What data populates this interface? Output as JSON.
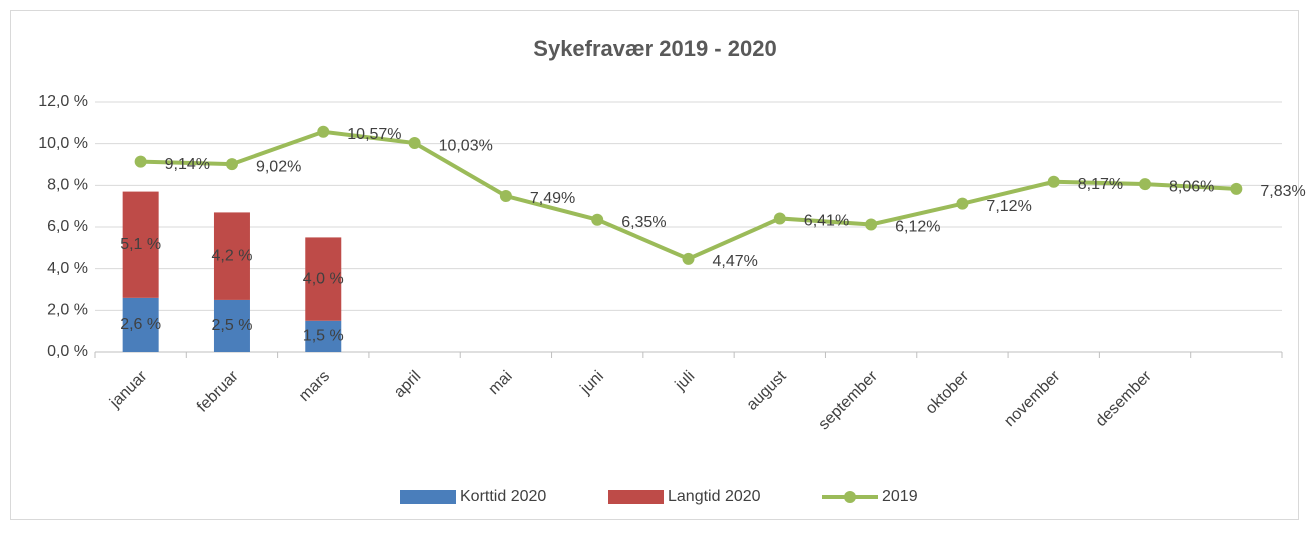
{
  "chart_data": {
    "type": "bar",
    "title": "Sykefravær 2019 - 2020",
    "categories": [
      "januar",
      "februar",
      "mars",
      "april",
      "mai",
      "juni",
      "juli",
      "august",
      "september",
      "oktober",
      "november",
      "desember",
      null
    ],
    "series": [
      {
        "name": "Korttid 2020",
        "color": "#4a7ebb",
        "values": [
          2.6,
          2.5,
          1.5,
          null,
          null,
          null,
          null,
          null,
          null,
          null,
          null,
          null,
          null
        ],
        "value_labels": [
          "2,6 %",
          "2,5 %",
          "1,5 %",
          null,
          null,
          null,
          null,
          null,
          null,
          null,
          null,
          null,
          null
        ]
      },
      {
        "name": "Langtid 2020",
        "color": "#be4b48",
        "values": [
          5.1,
          4.2,
          4.0,
          null,
          null,
          null,
          null,
          null,
          null,
          null,
          null,
          null,
          null
        ],
        "value_labels": [
          "5,1 %",
          "4,2 %",
          "4,0 %",
          null,
          null,
          null,
          null,
          null,
          null,
          null,
          null,
          null,
          null
        ]
      },
      {
        "name": "2019",
        "type": "line",
        "color": "#9bbb59",
        "values": [
          9.14,
          9.02,
          10.57,
          10.03,
          7.49,
          6.35,
          4.47,
          6.41,
          6.12,
          7.12,
          8.17,
          8.06,
          7.83
        ],
        "value_labels": [
          "9,14%",
          "9,02%",
          "10,57%",
          "10,03%",
          "7,49%",
          "6,35%",
          "4,47%",
          "6,41%",
          "6,12%",
          "7,12%",
          "8,17%",
          "8,06%",
          "7,83%"
        ]
      }
    ],
    "stacked": true,
    "ylim": [
      0,
      12
    ],
    "yticks": [
      {
        "value": 0,
        "label": "0,0 %"
      },
      {
        "value": 2,
        "label": "2,0 %"
      },
      {
        "value": 4,
        "label": "4,0 %"
      },
      {
        "value": 6,
        "label": "6,0 %"
      },
      {
        "value": 8,
        "label": "8,0 %"
      },
      {
        "value": 10,
        "label": "10,0 %"
      },
      {
        "value": 12,
        "label": "12,0 %"
      }
    ],
    "grid": true,
    "legend": "bottom"
  }
}
